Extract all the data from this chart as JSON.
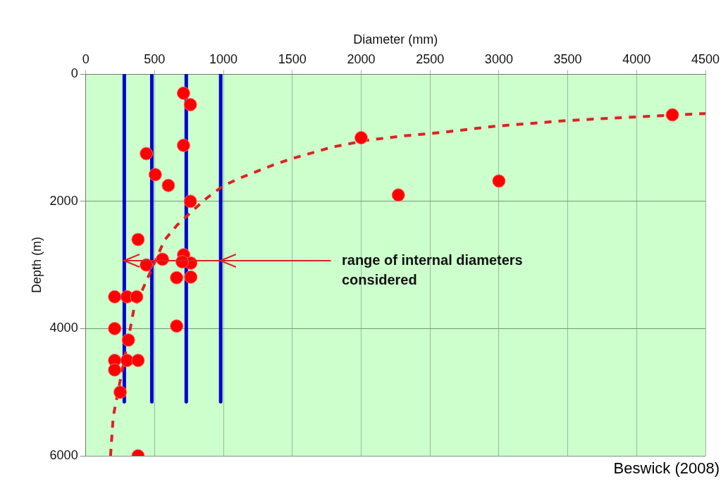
{
  "chart_data": {
    "type": "scatter",
    "xlabel": "Diameter (mm)",
    "ylabel": "Depth (m)",
    "xlim": [
      0,
      4500
    ],
    "xticks": [
      0,
      500,
      1000,
      1500,
      2000,
      2500,
      3000,
      3500,
      4000,
      4500
    ],
    "ylim": [
      6000,
      0
    ],
    "yticks": [
      0,
      2000,
      4000,
      6000
    ],
    "grid": true,
    "legend": false,
    "marker": "circle",
    "series": [
      {
        "color": "#ff0000",
        "x": [
          710,
          760,
          440,
          505,
          600,
          710,
          760,
          380,
          440,
          557,
          711,
          763,
          700,
          660,
          763,
          210,
          300,
          370,
          210,
          660,
          310,
          210,
          300,
          380,
          210,
          250,
          380,
          2000,
          2270,
          3000,
          4260
        ],
        "values": [
          300,
          480,
          1250,
          1580,
          1750,
          1120,
          2000,
          2600,
          3000,
          2910,
          2840,
          2970,
          2950,
          3200,
          3190,
          3500,
          3500,
          3500,
          4000,
          3960,
          4180,
          4500,
          4500,
          4500,
          4650,
          5000,
          6000,
          1000,
          1900,
          1680,
          640
        ]
      },
      {
        "type": "line",
        "color": "#dd2222",
        "marker": "none",
        "line_style": "dashed",
        "x": [
          180,
          200,
          325,
          350,
          572,
          665,
          866,
          995,
          1113,
          1371,
          1510,
          1784,
          2041,
          2314,
          2572,
          2969,
          3495,
          4015,
          4500
        ],
        "values": [
          6000,
          5380,
          3980,
          3690,
          2610,
          2370,
          1970,
          1760,
          1640,
          1420,
          1320,
          1150,
          1040,
          970,
          920,
          820,
          730,
          670,
          620
        ]
      },
      {
        "type": "line",
        "color": "#0000cc",
        "marker": "none",
        "line_style": "solid",
        "x": [
          280,
          280
        ],
        "values": [
          0,
          5150
        ]
      },
      {
        "type": "line",
        "color": "#0000cc",
        "marker": "none",
        "line_style": "solid",
        "x": [
          480,
          480
        ],
        "values": [
          0,
          5150
        ]
      },
      {
        "type": "line",
        "color": "#0000cc",
        "marker": "none",
        "line_style": "solid",
        "x": [
          730,
          730
        ],
        "values": [
          0,
          5150
        ]
      },
      {
        "type": "line",
        "color": "#0000cc",
        "marker": "none",
        "line_style": "solid",
        "x": [
          980,
          980
        ],
        "values": [
          0,
          5150
        ]
      }
    ],
    "annotations": [
      {
        "text": "range of internal diameters\nconsidered",
        "x": 280,
        "y": 2930
      },
      "Beswick (2008)"
    ]
  }
}
